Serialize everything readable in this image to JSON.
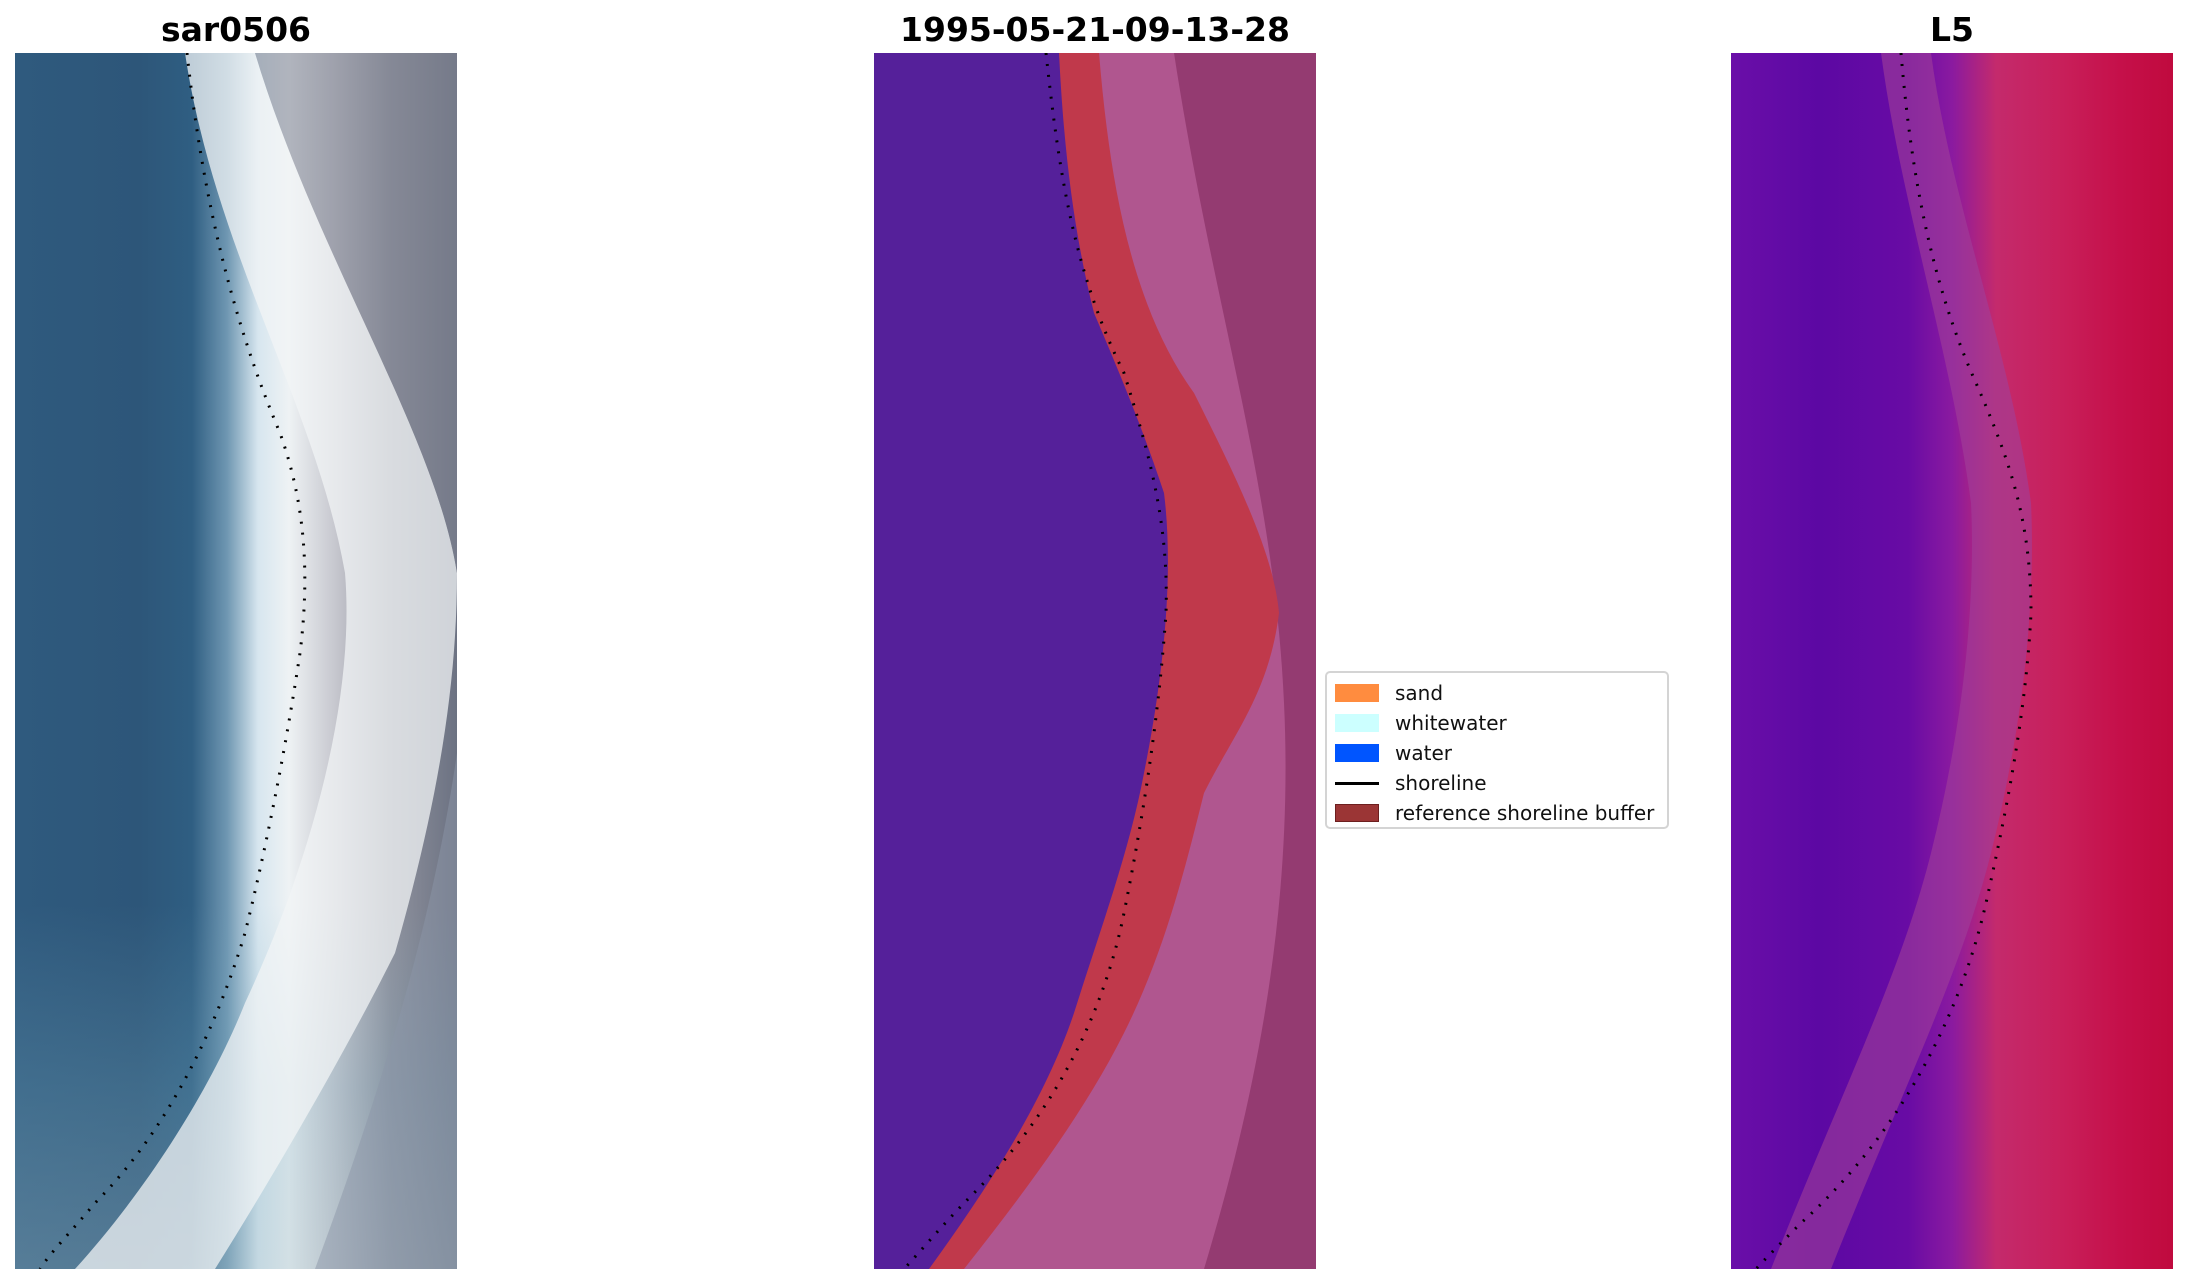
{
  "figure": {
    "panels": [
      {
        "title": "sar0506",
        "kind": "rgb-image"
      },
      {
        "title": "1995-05-21-09-13-28",
        "kind": "classification"
      },
      {
        "title": "L5",
        "kind": "index-image"
      }
    ]
  },
  "legend": {
    "items": [
      {
        "label": "sand",
        "type": "patch",
        "color": "#ff8c3f"
      },
      {
        "label": "whitewater",
        "type": "patch",
        "color": "#ccffff"
      },
      {
        "label": "water",
        "type": "patch",
        "color": "#0055ff"
      },
      {
        "label": "shoreline",
        "type": "line",
        "color": "#000000"
      },
      {
        "label": "reference shoreline buffer",
        "type": "patch",
        "color": "#9b3535"
      }
    ]
  },
  "colors": {
    "classified_water": "#55209a",
    "buffer_red": "#c0394b",
    "sand_pink": "#b0568f",
    "index_low": "#5c08a3",
    "index_high": "#c00a3e"
  }
}
